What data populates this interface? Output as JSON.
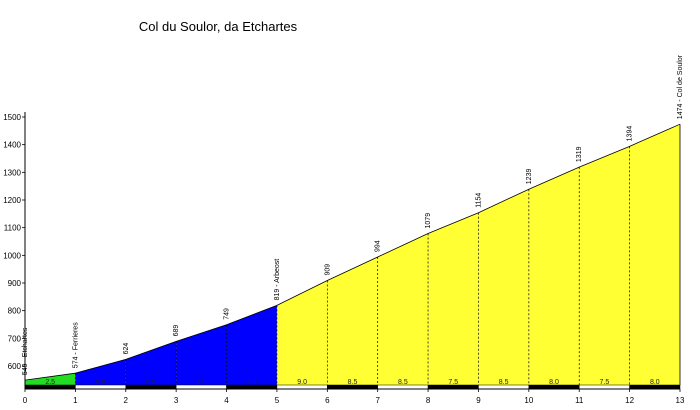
{
  "chart_data": {
    "type": "area",
    "title": "Col du Soulor, da Etchartes",
    "xlabel": "",
    "ylabel": "",
    "xlim": [
      0,
      13
    ],
    "ylim": [
      520,
      1500
    ],
    "x_ticks": [
      "0",
      "1",
      "2",
      "3",
      "4",
      "5",
      "6",
      "7",
      "8",
      "9",
      "10",
      "11",
      "12",
      "13"
    ],
    "y_ticks": [
      "600",
      "700",
      "800",
      "900",
      "1000",
      "1100",
      "1200",
      "1300",
      "1400",
      "1500"
    ],
    "grid": false,
    "points": [
      {
        "x": 0,
        "y": 549,
        "label": "549 - Etchartes"
      },
      {
        "x": 1,
        "y": 574,
        "label": "574 - Ferrieres"
      },
      {
        "x": 2,
        "y": 624,
        "label": "624"
      },
      {
        "x": 3,
        "y": 689,
        "label": "689"
      },
      {
        "x": 4,
        "y": 749,
        "label": "749"
      },
      {
        "x": 5,
        "y": 819,
        "label": "819 - Arbeost"
      },
      {
        "x": 6,
        "y": 909,
        "label": "909"
      },
      {
        "x": 7,
        "y": 994,
        "label": "994"
      },
      {
        "x": 8,
        "y": 1079,
        "label": "1079"
      },
      {
        "x": 9,
        "y": 1154,
        "label": "1154"
      },
      {
        "x": 10,
        "y": 1239,
        "label": "1239"
      },
      {
        "x": 11,
        "y": 1319,
        "label": "1319"
      },
      {
        "x": 12,
        "y": 1394,
        "label": "1394"
      },
      {
        "x": 13,
        "y": 1474,
        "label": "1474 - Col de Soulor"
      }
    ],
    "segments": [
      {
        "from": 0,
        "to": 1,
        "gradient": "2.5",
        "color": "#22dd22"
      },
      {
        "from": 1,
        "to": 2,
        "gradient": "5.0",
        "color": "#0000ff"
      },
      {
        "from": 2,
        "to": 3,
        "gradient": "6.5",
        "color": "#0000ff"
      },
      {
        "from": 3,
        "to": 4,
        "gradient": "6.0",
        "color": "#0000ff"
      },
      {
        "from": 4,
        "to": 5,
        "gradient": "7.0",
        "color": "#0000ff"
      },
      {
        "from": 5,
        "to": 6,
        "gradient": "9.0",
        "color": "#ffff33"
      },
      {
        "from": 6,
        "to": 7,
        "gradient": "8.5",
        "color": "#ffff33"
      },
      {
        "from": 7,
        "to": 8,
        "gradient": "8.5",
        "color": "#ffff33"
      },
      {
        "from": 8,
        "to": 9,
        "gradient": "7.5",
        "color": "#ffff33"
      },
      {
        "from": 9,
        "to": 10,
        "gradient": "8.5",
        "color": "#ffff33"
      },
      {
        "from": 10,
        "to": 11,
        "gradient": "8.0",
        "color": "#ffff33"
      },
      {
        "from": 11,
        "to": 12,
        "gradient": "7.5",
        "color": "#ffff33"
      },
      {
        "from": 12,
        "to": 13,
        "gradient": "8.0",
        "color": "#ffff33"
      }
    ]
  }
}
